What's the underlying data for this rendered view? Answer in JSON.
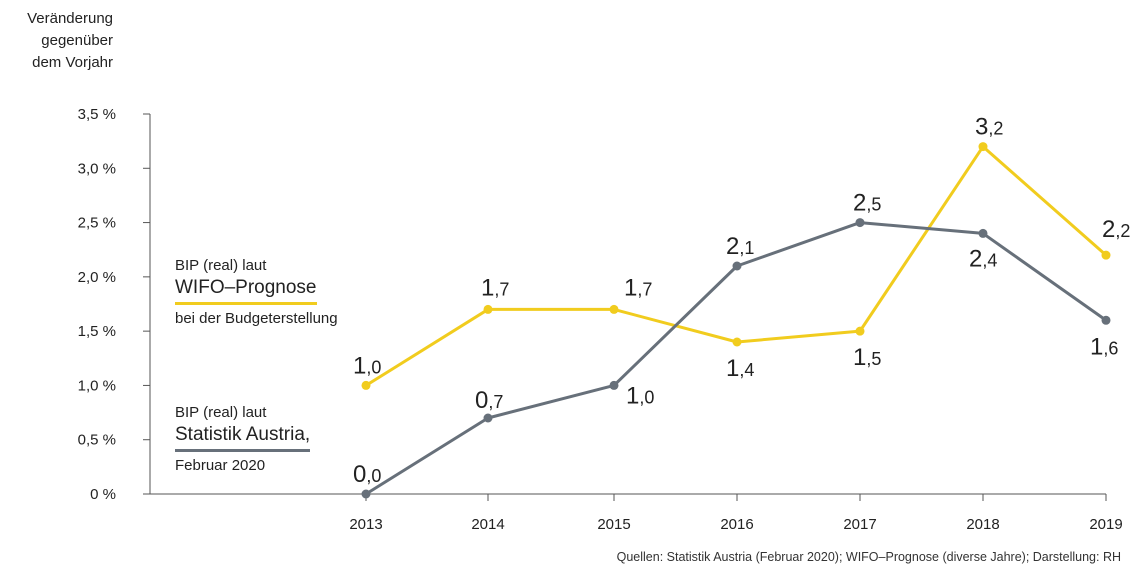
{
  "y_axis_title": [
    "Veränderung",
    "gegenüber",
    "dem Vorjahr"
  ],
  "source": "Quellen: Statistik Austria (Februar 2020); WIFO–Prognose (diverse Jahre); Darstellung: RH",
  "legend": {
    "wifo": {
      "line1": "BIP (real) laut",
      "brand": "WIFO–Prognose",
      "line3": "bei der Budgeterstellung"
    },
    "statistik": {
      "line1": "BIP (real) laut",
      "brand": "Statistik Austria,",
      "line3": "Februar 2020"
    }
  },
  "colors": {
    "wifo": "#f1cc1e",
    "statistik": "#67707a",
    "axis": "#555555"
  },
  "chart_data": {
    "type": "line",
    "x": [
      "2013",
      "2014",
      "2015",
      "2016",
      "2017",
      "2018",
      "2019"
    ],
    "y_ticks": [
      "0 %",
      "0,5 %",
      "1,0 %",
      "1,5 %",
      "2,0 %",
      "2,5 %",
      "3,0 %",
      "3,5 %"
    ],
    "ylim": [
      0,
      3.5
    ],
    "grid": false,
    "series": [
      {
        "key": "wifo",
        "values": [
          1.0,
          1.7,
          1.7,
          1.4,
          1.5,
          3.2,
          2.2
        ],
        "labels": [
          [
            "1",
            ",0"
          ],
          [
            "1",
            ",7"
          ],
          [
            "1",
            ",7"
          ],
          [
            "1",
            ",4"
          ],
          [
            "1",
            ",5"
          ],
          [
            "3",
            ",2"
          ],
          [
            "2",
            ",2"
          ]
        ]
      },
      {
        "key": "statistik",
        "values": [
          0.0,
          0.7,
          1.0,
          2.1,
          2.5,
          2.4,
          1.6
        ],
        "labels": [
          [
            "0",
            ",0"
          ],
          [
            "0",
            ",7"
          ],
          [
            "1",
            ",0"
          ],
          [
            "2",
            ",1"
          ],
          [
            "2",
            ",5"
          ],
          [
            "2",
            ",4"
          ],
          [
            "1",
            ",6"
          ]
        ]
      }
    ]
  }
}
